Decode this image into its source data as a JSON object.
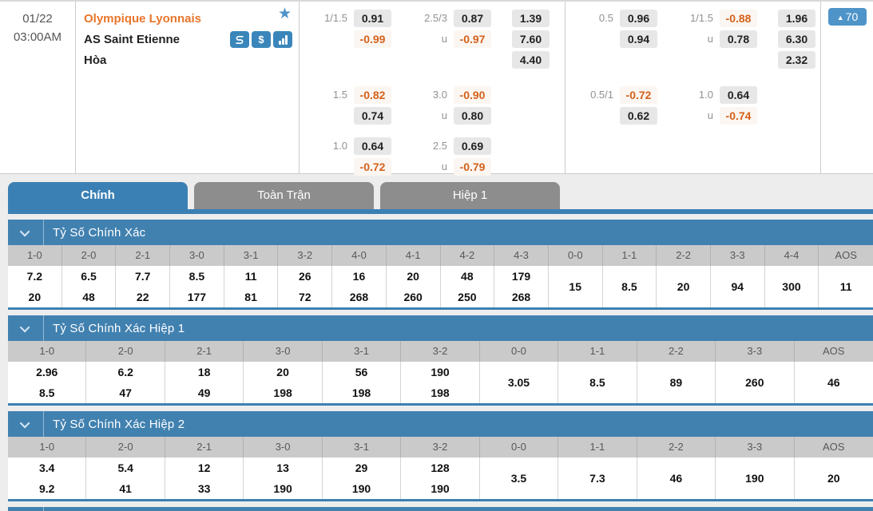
{
  "colors": {
    "accent_blue": "#3b80b4",
    "section_blue": "#4181b0",
    "badge_blue": "#4e94c9",
    "inactive_tab_gray": "#8d8d8d",
    "odds_orange": "#d4611c",
    "home_team_orange": "#e8762c"
  },
  "match": {
    "date": "01/22",
    "time": "03:00AM",
    "home_team": "Olympique Lyonnais",
    "away_team": "AS Saint Etienne",
    "draw_label": "Hòa",
    "badge_count": "70",
    "badge_arrow": "▲",
    "star": "★",
    "icons": [
      "bet-slip-icon",
      "money-icon",
      "stats-icon"
    ]
  },
  "odds_groups": [
    {
      "blocks": [
        {
          "hdp_label": "1/1.5",
          "hdp": [
            "0.91",
            "-0.99"
          ],
          "ou_label": "2.5/3",
          "ou_sub": "u",
          "ou": [
            "0.87",
            "-0.97"
          ],
          "x12": [
            "1.39",
            "7.60",
            "4.40"
          ]
        },
        {
          "hdp_label": "1.5",
          "hdp": [
            "-0.82",
            "0.74"
          ],
          "ou_label": "3.0",
          "ou_sub": "u",
          "ou": [
            "-0.90",
            "0.80"
          ]
        },
        {
          "hdp_label": "1.0",
          "hdp": [
            "0.64",
            "-0.72"
          ],
          "ou_label": "2.5",
          "ou_sub": "u",
          "ou": [
            "0.69",
            "-0.79"
          ]
        }
      ]
    },
    {
      "blocks": [
        {
          "hdp_label": "0.5",
          "hdp": [
            "0.96",
            "0.94"
          ],
          "ou_label": "1/1.5",
          "ou_sub": "u",
          "ou": [
            "-0.88",
            "0.78"
          ],
          "x12": [
            "1.96",
            "6.30",
            "2.32"
          ]
        },
        {
          "hdp_label": "0.5/1",
          "hdp": [
            "-0.72",
            "0.62"
          ],
          "ou_label": "1.0",
          "ou_sub": "u",
          "ou": [
            "0.64",
            "-0.74"
          ]
        }
      ]
    }
  ],
  "tabs": [
    {
      "label": "Chính",
      "active": true
    },
    {
      "label": "Toàn Trận",
      "active": false
    },
    {
      "label": "Hiệp 1",
      "active": false
    }
  ],
  "sections": [
    {
      "title": "Tỷ Số Chính Xác",
      "columns": [
        "1-0",
        "2-0",
        "2-1",
        "3-0",
        "3-1",
        "3-2",
        "4-0",
        "4-1",
        "4-2",
        "4-3",
        "0-0",
        "1-1",
        "2-2",
        "3-3",
        "4-4",
        "AOS"
      ],
      "values": [
        [
          "7.2",
          "20"
        ],
        [
          "6.5",
          "48"
        ],
        [
          "7.7",
          "22"
        ],
        [
          "8.5",
          "177"
        ],
        [
          "11",
          "81"
        ],
        [
          "26",
          "72"
        ],
        [
          "16",
          "268"
        ],
        [
          "20",
          "260"
        ],
        [
          "48",
          "250"
        ],
        [
          "179",
          "268"
        ],
        [
          "15"
        ],
        [
          "8.5"
        ],
        [
          "20"
        ],
        [
          "94"
        ],
        [
          "300"
        ],
        [
          "11"
        ]
      ]
    },
    {
      "title": "Tỷ Số Chính Xác Hiệp 1",
      "columns": [
        "1-0",
        "2-0",
        "2-1",
        "3-0",
        "3-1",
        "3-2",
        "0-0",
        "1-1",
        "2-2",
        "3-3",
        "AOS"
      ],
      "values": [
        [
          "2.96",
          "8.5"
        ],
        [
          "6.2",
          "47"
        ],
        [
          "18",
          "49"
        ],
        [
          "20",
          "198"
        ],
        [
          "56",
          "198"
        ],
        [
          "190",
          "198"
        ],
        [
          "3.05"
        ],
        [
          "8.5"
        ],
        [
          "89"
        ],
        [
          "260"
        ],
        [
          "46"
        ]
      ]
    },
    {
      "title": "Tỷ Số Chính Xác Hiệp 2",
      "columns": [
        "1-0",
        "2-0",
        "2-1",
        "3-0",
        "3-1",
        "3-2",
        "0-0",
        "1-1",
        "2-2",
        "3-3",
        "AOS"
      ],
      "values": [
        [
          "3.4",
          "9.2"
        ],
        [
          "5.4",
          "41"
        ],
        [
          "12",
          "33"
        ],
        [
          "13",
          "190"
        ],
        [
          "29",
          "190"
        ],
        [
          "128",
          "190"
        ],
        [
          "3.5"
        ],
        [
          "7.3"
        ],
        [
          "46"
        ],
        [
          "190"
        ],
        [
          "20"
        ]
      ]
    },
    {
      "title": "",
      "partial": true
    }
  ]
}
